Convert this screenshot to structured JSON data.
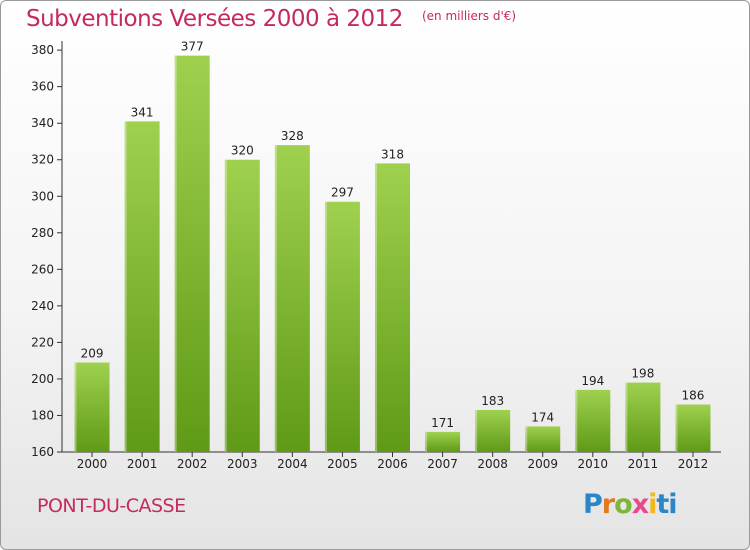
{
  "header": {
    "title": "Subventions Versées 2000 à 2012",
    "unit": "(en milliers d'€)"
  },
  "footer": {
    "commune": "PONT-DU-CASSE",
    "logo_letters": [
      "P",
      "r",
      "o",
      "x",
      "i",
      "ti"
    ]
  },
  "colors": {
    "title": "#c42a5a",
    "bar_top": "#9fd14f",
    "bar_bottom": "#5f9a16",
    "axis": "#333333",
    "grid": "#cccccc"
  },
  "chart_data": {
    "type": "bar",
    "title": "Subventions Versées 2000 à 2012",
    "subtitle": "(en milliers d'€)",
    "xlabel": "",
    "ylabel": "",
    "categories": [
      "2000",
      "2001",
      "2002",
      "2003",
      "2004",
      "2005",
      "2006",
      "2007",
      "2008",
      "2009",
      "2010",
      "2011",
      "2012"
    ],
    "values": [
      209,
      341,
      377,
      320,
      328,
      297,
      318,
      171,
      183,
      174,
      194,
      198,
      186
    ],
    "ylim": [
      160,
      385
    ],
    "yticks": [
      160,
      180,
      200,
      220,
      240,
      260,
      280,
      300,
      320,
      340,
      360,
      380
    ],
    "grid": false,
    "legend": "none",
    "data_labels": true
  }
}
